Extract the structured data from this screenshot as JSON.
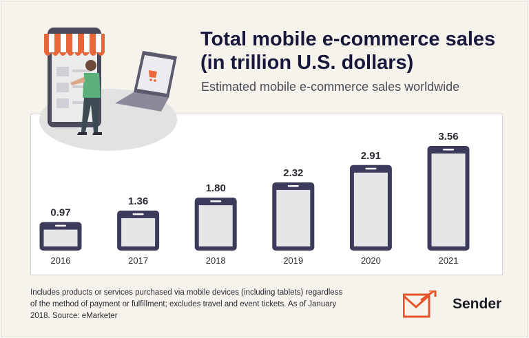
{
  "header": {
    "title_line1": "Total mobile e-commerce sales",
    "title_line2": "(in trillion U.S. dollars)",
    "subtitle": "Estimated mobile e-commerce sales worldwide"
  },
  "chart_data": {
    "type": "bar",
    "title": "Total mobile e-commerce sales (in trillion U.S. dollars)",
    "subtitle": "Estimated mobile e-commerce sales worldwide",
    "categories": [
      "2016",
      "2017",
      "2018",
      "2019",
      "2020",
      "2021"
    ],
    "values": [
      0.97,
      1.36,
      1.8,
      2.32,
      2.91,
      3.56
    ],
    "value_labels": [
      "0.97",
      "1.36",
      "1.80",
      "2.32",
      "2.91",
      "3.56"
    ],
    "ylim": [
      0,
      3.56
    ],
    "grid": false,
    "bar_style": "phone-shaped bars",
    "colors": {
      "bar": "#3d3b5c",
      "screen": "#e6e6e8",
      "text": "#2b2b33"
    }
  },
  "footnote": "Includes products or services purchased via mobile devices (including tablets) regardless of the method of payment or fulfillment; excludes travel and event tickets. As of January 2018. Source: eMarketer",
  "brand": {
    "name": "Sender",
    "icon": "envelope-arrow-icon",
    "accent": "#e8542a"
  },
  "illustration": {
    "icon": "online-shopping-illustration"
  }
}
